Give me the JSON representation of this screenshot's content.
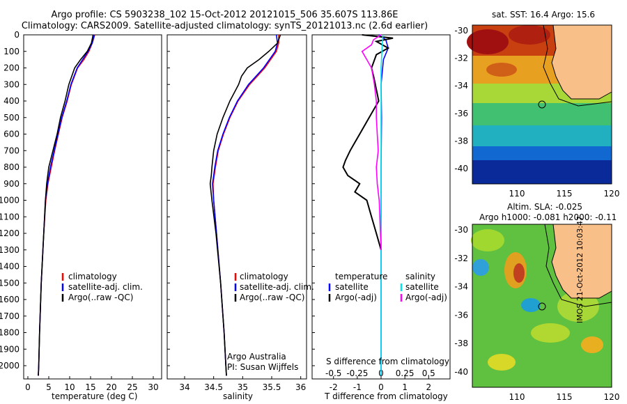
{
  "title": {
    "line1": "Argo profile: CS 5903238_102 15-Oct-2012 20121015_506 35.607S 113.86E",
    "line2": "Climatology: CARS2009. Satellite-adjusted climatology: synTS_20121013.nc (2.6d earlier)"
  },
  "colors": {
    "climatology": "#ff0000",
    "satellite": "#0000ff",
    "argo": "#000000",
    "sal_sat": "#00e5ee",
    "sal_argo": "#ff00ff"
  },
  "chart_data": [
    {
      "type": "line",
      "xlabel": "temperature (deg C)",
      "ylim": [
        2080,
        0
      ],
      "xlim": [
        -1,
        32
      ],
      "yticks": [
        "0",
        "100",
        "200",
        "300",
        "400",
        "500",
        "600",
        "700",
        "800",
        "900",
        "1000",
        "1100",
        "1200",
        "1300",
        "1400",
        "1500",
        "1600",
        "1700",
        "1800",
        "1900",
        "2000"
      ],
      "xticks": [
        "0",
        "5",
        "10",
        "15",
        "20",
        "25",
        "30"
      ],
      "legend": [
        "climatology",
        "satellite-adj. clim.",
        "Argo(..raw -QC)"
      ],
      "depth": [
        0,
        50,
        100,
        150,
        200,
        300,
        400,
        500,
        600,
        700,
        800,
        900,
        1000,
        1200,
        1500,
        1800,
        2000,
        2060
      ],
      "series": [
        {
          "name": "climatology",
          "values": [
            16.0,
            15.4,
            14.6,
            13.4,
            11.9,
            10.4,
            9.4,
            8.2,
            7.3,
            6.4,
            5.6,
            4.8,
            4.3,
            3.8,
            3.2,
            2.8,
            2.6,
            2.5
          ]
        },
        {
          "name": "satellite-adj. clim.",
          "values": [
            15.9,
            15.4,
            14.4,
            13.1,
            11.8,
            10.3,
            9.3,
            8.1,
            7.2,
            6.3,
            5.4,
            4.7,
            4.2,
            3.8,
            3.2,
            2.8,
            2.6,
            2.5
          ]
        },
        {
          "name": "Argo(..raw -QC)",
          "values": [
            15.6,
            15.2,
            14.2,
            12.6,
            11.2,
            9.8,
            8.9,
            7.8,
            7.0,
            6.0,
            5.0,
            4.5,
            4.2,
            3.8,
            3.2,
            2.8,
            2.6,
            2.5
          ]
        }
      ]
    },
    {
      "type": "line",
      "xlabel": "salinity",
      "xlim": [
        33.7,
        36.1
      ],
      "xticks": [
        "34",
        "34.5",
        "35",
        "35.5",
        "36"
      ],
      "legend": [
        "climatology",
        "satellite-adj. clim.",
        "Argo(..raw -QC)"
      ],
      "annotation": [
        "Argo Australia",
        "PI: Susan Wijffels"
      ],
      "depth": [
        0,
        50,
        100,
        150,
        200,
        250,
        300,
        400,
        500,
        600,
        700,
        800,
        850,
        900,
        1000,
        1200,
        1500,
        1800,
        2000,
        2060
      ],
      "series": [
        {
          "name": "climatology",
          "values": [
            35.62,
            35.62,
            35.58,
            35.48,
            35.38,
            35.25,
            35.12,
            34.92,
            34.78,
            34.67,
            34.58,
            34.53,
            34.51,
            34.49,
            34.5,
            34.55,
            34.62,
            34.68,
            34.71,
            34.72
          ]
        },
        {
          "name": "satellite-adj. clim.",
          "values": [
            35.58,
            35.6,
            35.56,
            35.46,
            35.36,
            35.23,
            35.1,
            34.91,
            34.77,
            34.66,
            34.57,
            34.52,
            34.5,
            34.48,
            34.5,
            34.55,
            34.62,
            34.68,
            34.71,
            34.72
          ]
        },
        {
          "name": "Argo(..raw -QC)",
          "values": [
            35.65,
            35.6,
            35.45,
            35.28,
            35.08,
            34.98,
            34.93,
            34.78,
            34.66,
            34.56,
            34.5,
            34.47,
            34.46,
            34.44,
            34.47,
            34.54,
            34.62,
            34.68,
            34.71,
            34.72
          ]
        }
      ]
    },
    {
      "type": "line",
      "xlabel": "T difference from climatology",
      "x2label": "S difference from climatology",
      "xticks": [
        "-2",
        "-1",
        "0",
        "1",
        "2"
      ],
      "x2ticks": [
        "-0.5",
        "-0.25",
        "0",
        "0.25",
        "0.5"
      ],
      "legend_left": {
        "header": "temperature",
        "items": [
          "satellite",
          "Argo(-adj)"
        ]
      },
      "legend_right": {
        "header": "salinity",
        "items": [
          "satellite",
          "Argo(-adj)"
        ]
      },
      "series": [
        {
          "name": "temperature satellite",
          "depth": [
            0,
            30,
            80,
            150,
            300,
            500,
            800,
            1200,
            2060
          ],
          "values": [
            -0.1,
            0.2,
            0.3,
            0.1,
            0.0,
            0.02,
            0.0,
            0.0,
            0.0
          ]
        },
        {
          "name": "temperature Argo(-adj)",
          "depth": [
            0,
            20,
            40,
            80,
            120,
            200,
            260,
            400,
            500,
            600,
            700,
            760,
            800,
            850,
            900,
            950,
            1000,
            1100,
            1200,
            1300
          ],
          "values": [
            -0.8,
            0.5,
            -0.2,
            0.3,
            -0.2,
            -0.4,
            -0.3,
            -0.1,
            -0.5,
            -0.9,
            -1.3,
            -1.5,
            -1.6,
            -1.4,
            -0.9,
            -1.1,
            -0.6,
            -0.4,
            -0.2,
            0.0
          ]
        },
        {
          "name": "salinity satellite",
          "depth": [
            0,
            80,
            200,
            400,
            800,
            1200,
            2060
          ],
          "values": [
            0.02,
            0.01,
            0.0,
            0.0,
            0.0,
            0.0,
            0.0
          ]
        },
        {
          "name": "salinity Argo(-adj)",
          "depth": [
            0,
            30,
            60,
            100,
            150,
            200,
            300,
            400,
            500,
            600,
            700,
            800,
            900,
            1000,
            1300
          ],
          "values": [
            0.0,
            -0.08,
            -0.1,
            -0.2,
            -0.15,
            -0.1,
            -0.07,
            -0.05,
            -0.05,
            -0.04,
            -0.03,
            -0.05,
            -0.04,
            -0.02,
            0.0
          ]
        }
      ]
    }
  ],
  "maps": {
    "sst": {
      "title": "sat. SST: 16.4 Argo: 15.6",
      "yticks": [
        "-30",
        "-32",
        "-34",
        "-36",
        "-38",
        "-40"
      ],
      "xticks": [
        "110",
        "115",
        "120"
      ]
    },
    "sla": {
      "title1": "Altim. SLA: -0.025",
      "title2": "Argo h1000: -0.081 h2000: -0.11",
      "yticks": [
        "-30",
        "-32",
        "-34",
        "-36",
        "-38",
        "-40"
      ],
      "xticks": [
        "110",
        "115",
        "120"
      ]
    }
  },
  "credit": "IMOS 21-Oct-2012 10:03:47"
}
